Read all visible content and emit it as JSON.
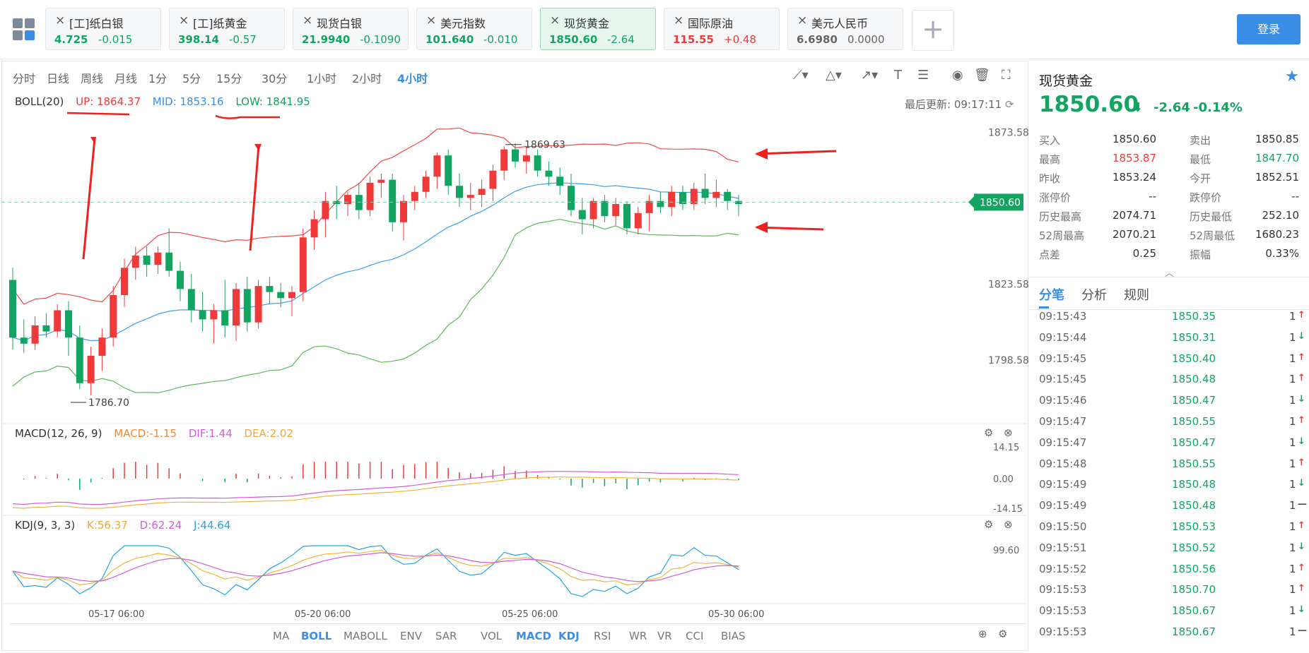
{
  "topbar": {
    "tabs": [
      {
        "name": "[工]纸白银",
        "price": "4.725",
        "change": "-0.015",
        "dir": "down"
      },
      {
        "name": "[工]纸黄金",
        "price": "398.14",
        "change": "-0.57",
        "dir": "down"
      },
      {
        "name": "现货白银",
        "price": "21.9940",
        "change": "-0.1090",
        "dir": "down"
      },
      {
        "name": "美元指数",
        "price": "101.640",
        "change": "-0.010",
        "dir": "down"
      },
      {
        "name": "现货黄金",
        "price": "1850.60",
        "change": "-2.64",
        "dir": "down",
        "active": true
      },
      {
        "name": "国际原油",
        "price": "115.55",
        "change": "+0.48",
        "dir": "up"
      },
      {
        "name": "美元人民币",
        "price": "6.6980",
        "change": "0.0000",
        "dir": "flat"
      }
    ],
    "close_icon": "×",
    "add_icon": "+",
    "login_label": "登录"
  },
  "periods": [
    "分时",
    "日线",
    "周线",
    "月线",
    "1分",
    "5分",
    "15分",
    "30分",
    "1小时",
    "2小时",
    "4小时"
  ],
  "active_period": "4小时",
  "boll_row": {
    "name": "BOLL(20)",
    "up": "UP: 1864.37",
    "mid": "MID: 1853.16",
    "low": "LOW: 1841.95"
  },
  "updated": "最后更新: 09:17:11",
  "macd_row": {
    "name": "MACD(12, 26, 9)",
    "macd": "MACD:-1.15",
    "dif": "DIF:1.44",
    "dea": "DEA:2.02"
  },
  "kdj_row": {
    "name": "KDJ(9, 3, 3)",
    "k": "K:56.37",
    "d": "D:62.24",
    "j": "J:44.64"
  },
  "bottom_indicators": [
    "MA",
    "BOLL",
    "MABOLL",
    "ENV",
    "SAR",
    "VOL",
    "MACD",
    "KDJ",
    "RSI",
    "WR",
    "VR",
    "CCI",
    "BIAS"
  ],
  "bottom_active": [
    "BOLL",
    "MACD",
    "KDJ"
  ],
  "colors": {
    "up": "#f03a3a",
    "down": "#12a562",
    "boll_up": "#f04848",
    "boll_mid": "#3aa0e8",
    "boll_low": "#5cb85c",
    "accent": "#3a8ee6"
  },
  "chart_data": {
    "type": "candlestick",
    "y_axis_ticks": [
      "1873.58",
      "1823.58",
      "1798.58"
    ],
    "ylim": [
      1780,
      1880
    ],
    "last_price_label": "1850.60",
    "high_marker": "1869.63",
    "low_marker": "1786.70",
    "x_ticks": [
      "05-17 06:00",
      "05-20 06:00",
      "05-25 06:00",
      "05-30 06:00"
    ],
    "macd_ticks": [
      "14.15",
      "0.00",
      "-14.15"
    ],
    "kdj_ticks": [
      "99.60"
    ],
    "candles": [
      [
        1825,
        1829,
        1802,
        1806
      ],
      [
        1806,
        1812,
        1801,
        1804
      ],
      [
        1804,
        1813,
        1802,
        1810
      ],
      [
        1810,
        1814,
        1806,
        1808
      ],
      [
        1808,
        1817,
        1806,
        1815
      ],
      [
        1815,
        1818,
        1800,
        1806
      ],
      [
        1806,
        1810,
        1789,
        1791
      ],
      [
        1791,
        1803,
        1787,
        1800
      ],
      [
        1800,
        1809,
        1795,
        1806
      ],
      [
        1806,
        1823,
        1803,
        1820
      ],
      [
        1820,
        1832,
        1816,
        1829
      ],
      [
        1829,
        1836,
        1825,
        1833
      ],
      [
        1833,
        1836,
        1826,
        1830
      ],
      [
        1830,
        1836,
        1827,
        1834
      ],
      [
        1834,
        1842,
        1826,
        1828
      ],
      [
        1828,
        1831,
        1818,
        1822
      ],
      [
        1822,
        1827,
        1811,
        1815
      ],
      [
        1815,
        1821,
        1808,
        1812
      ],
      [
        1812,
        1817,
        1804,
        1815
      ],
      [
        1815,
        1825,
        1806,
        1810
      ],
      [
        1810,
        1824,
        1805,
        1822
      ],
      [
        1822,
        1826,
        1808,
        1811
      ],
      [
        1811,
        1825,
        1809,
        1823
      ],
      [
        1823,
        1826,
        1817,
        1821
      ],
      [
        1821,
        1824,
        1816,
        1819
      ],
      [
        1819,
        1823,
        1813,
        1821
      ],
      [
        1821,
        1842,
        1818,
        1839
      ],
      [
        1839,
        1848,
        1835,
        1845
      ],
      [
        1845,
        1854,
        1839,
        1851
      ],
      [
        1851,
        1856,
        1845,
        1850
      ],
      [
        1850,
        1854,
        1846,
        1853
      ],
      [
        1853,
        1857,
        1845,
        1848
      ],
      [
        1848,
        1859,
        1846,
        1857
      ],
      [
        1857,
        1860,
        1852,
        1858
      ],
      [
        1858,
        1860,
        1841,
        1844
      ],
      [
        1844,
        1853,
        1838,
        1851
      ],
      [
        1851,
        1856,
        1848,
        1854
      ],
      [
        1854,
        1861,
        1852,
        1859
      ],
      [
        1859,
        1867,
        1855,
        1866
      ],
      [
        1866,
        1868,
        1853,
        1856
      ],
      [
        1856,
        1860,
        1849,
        1852
      ],
      [
        1852,
        1857,
        1848,
        1853
      ],
      [
        1853,
        1858,
        1849,
        1855
      ],
      [
        1855,
        1863,
        1851,
        1861
      ],
      [
        1861,
        1869,
        1858,
        1868
      ],
      [
        1868,
        1870,
        1862,
        1864
      ],
      [
        1864,
        1869,
        1860,
        1866
      ],
      [
        1866,
        1868,
        1859,
        1861
      ],
      [
        1861,
        1864,
        1856,
        1859
      ],
      [
        1859,
        1862,
        1853,
        1856
      ],
      [
        1856,
        1860,
        1846,
        1848
      ],
      [
        1848,
        1852,
        1840,
        1845
      ],
      [
        1845,
        1852,
        1842,
        1851
      ],
      [
        1851,
        1853,
        1844,
        1846
      ],
      [
        1846,
        1852,
        1843,
        1850
      ],
      [
        1850,
        1851,
        1840,
        1842
      ],
      [
        1842,
        1849,
        1840,
        1847
      ],
      [
        1847,
        1853,
        1841,
        1851
      ],
      [
        1851,
        1854,
        1847,
        1849
      ],
      [
        1849,
        1856,
        1846,
        1854
      ],
      [
        1854,
        1856,
        1848,
        1850
      ],
      [
        1850,
        1857,
        1848,
        1855
      ],
      [
        1855,
        1860,
        1850,
        1852
      ],
      [
        1852,
        1858,
        1849,
        1854
      ],
      [
        1854,
        1855,
        1848,
        1851
      ],
      [
        1851,
        1853,
        1846,
        1850
      ]
    ]
  },
  "sidebar": {
    "title": "现货黄金",
    "price": "1850.60",
    "change": "-2.64",
    "change_pct": "-0.14%",
    "stats": [
      {
        "k": "买入",
        "v": "1850.60",
        "k2": "卖出",
        "v2": "1850.85",
        "c": "",
        "c2": ""
      },
      {
        "k": "最高",
        "v": "1853.87",
        "k2": "最低",
        "v2": "1847.70",
        "c": "#f03a3a",
        "c2": "#12a562"
      },
      {
        "k": "昨收",
        "v": "1853.24",
        "k2": "今开",
        "v2": "1852.51",
        "c": "",
        "c2": ""
      },
      {
        "k": "涨停价",
        "v": "--",
        "k2": "跌停价",
        "v2": "--",
        "c": "",
        "c2": ""
      },
      {
        "k": "历史最高",
        "v": "2074.71",
        "k2": "历史最低",
        "v2": "252.10",
        "c": "",
        "c2": ""
      },
      {
        "k": "52周最高",
        "v": "2070.21",
        "k2": "52周最低",
        "v2": "1680.23",
        "c": "",
        "c2": ""
      },
      {
        "k": "点差",
        "v": "0.25",
        "k2": "振幅",
        "v2": "0.33%",
        "c": "",
        "c2": ""
      }
    ],
    "tabs": [
      "分笔",
      "分析",
      "规则"
    ],
    "ticks": [
      {
        "t": "09:15:43",
        "p": "1850.35",
        "q": "1",
        "d": "up"
      },
      {
        "t": "09:15:44",
        "p": "1850.31",
        "q": "1",
        "d": "down"
      },
      {
        "t": "09:15:45",
        "p": "1850.40",
        "q": "1",
        "d": "up"
      },
      {
        "t": "09:15:45",
        "p": "1850.48",
        "q": "1",
        "d": "up"
      },
      {
        "t": "09:15:46",
        "p": "1850.47",
        "q": "1",
        "d": "down"
      },
      {
        "t": "09:15:47",
        "p": "1850.55",
        "q": "1",
        "d": "up"
      },
      {
        "t": "09:15:47",
        "p": "1850.47",
        "q": "1",
        "d": "down"
      },
      {
        "t": "09:15:48",
        "p": "1850.55",
        "q": "1",
        "d": "up"
      },
      {
        "t": "09:15:49",
        "p": "1850.48",
        "q": "1",
        "d": "down"
      },
      {
        "t": "09:15:49",
        "p": "1850.48",
        "q": "1",
        "d": "flat"
      },
      {
        "t": "09:15:50",
        "p": "1850.53",
        "q": "1",
        "d": "up"
      },
      {
        "t": "09:15:51",
        "p": "1850.52",
        "q": "1",
        "d": "down"
      },
      {
        "t": "09:15:52",
        "p": "1850.56",
        "q": "1",
        "d": "up"
      },
      {
        "t": "09:15:53",
        "p": "1850.70",
        "q": "1",
        "d": "up"
      },
      {
        "t": "09:15:53",
        "p": "1850.67",
        "q": "1",
        "d": "down"
      },
      {
        "t": "09:15:53",
        "p": "1850.67",
        "q": "1",
        "d": "flat"
      }
    ]
  }
}
